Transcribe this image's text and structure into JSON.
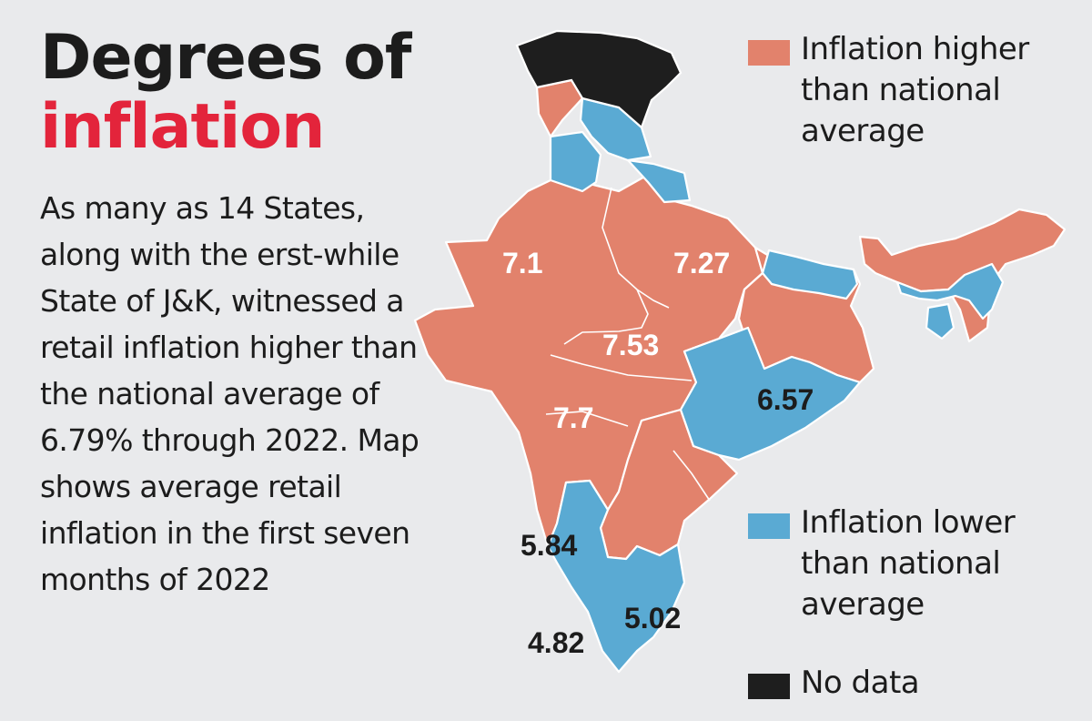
{
  "title": {
    "line1": "Degrees of",
    "line2": "inflation"
  },
  "description": "As many as 14 States, along with the erst-while State of J&K, witnessed a retail inflation higher than the national average of 6.79% through 2022. Map shows average retail inflation in the first seven months of 2022",
  "legend": [
    {
      "label": "Inflation higher than national average",
      "color": "#e2826c"
    },
    {
      "label": "Inflation lower than national average",
      "color": "#5aaad3"
    },
    {
      "label": "No data",
      "color": "#1e1e1e"
    }
  ],
  "map_labels": {
    "rajasthan": "7.1",
    "uttar_pradesh": "7.27",
    "madhya_pradesh": "7.53",
    "maharashtra": "7.7",
    "odisha": "6.57",
    "karnataka": "5.84",
    "tamil_nadu": "5.02",
    "kerala": "4.82"
  },
  "colors": {
    "higher": "#e2826c",
    "lower": "#5aaad3",
    "no_data": "#1e1e1e",
    "background": "#e9eaec"
  }
}
